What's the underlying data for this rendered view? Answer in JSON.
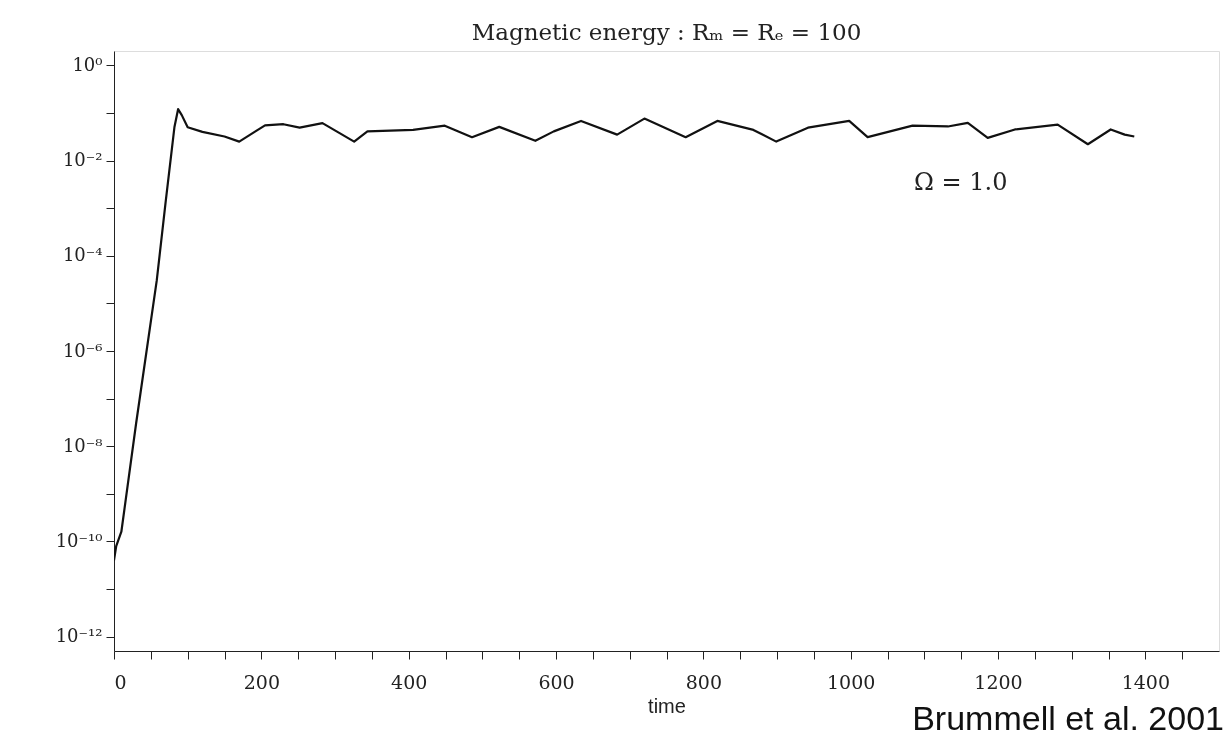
{
  "chart_data": {
    "type": "line",
    "title": "Magnetic energy : Rₘ = Rₑ = 100",
    "xlabel": "time",
    "annotations": [
      "Brummell et al. 2001"
    ],
    "log": "y",
    "grid": false,
    "legend": false,
    "marker": "none",
    "line_style": "solid",
    "xlim": [
      0,
      1500
    ],
    "ylim": [
      5e-13,
      2
    ],
    "xticks": [
      0,
      {
        "value": 50,
        "label": null
      },
      {
        "value": 100,
        "label": null
      },
      {
        "value": 150,
        "label": null
      },
      200,
      {
        "value": 250,
        "label": null
      },
      {
        "value": 300,
        "label": null
      },
      {
        "value": 350,
        "label": null
      },
      400,
      {
        "value": 450,
        "label": null
      },
      {
        "value": 500,
        "label": null
      },
      {
        "value": 550,
        "label": null
      },
      600,
      {
        "value": 650,
        "label": null
      },
      {
        "value": 700,
        "label": null
      },
      {
        "value": 750,
        "label": null
      },
      800,
      {
        "value": 850,
        "label": null
      },
      {
        "value": 900,
        "label": null
      },
      {
        "value": 950,
        "label": null
      },
      1000,
      {
        "value": 1050,
        "label": null
      },
      {
        "value": 1100,
        "label": null
      },
      {
        "value": 1150,
        "label": null
      },
      1200,
      {
        "value": 1250,
        "label": null
      },
      {
        "value": 1300,
        "label": null
      },
      {
        "value": 1350,
        "label": null
      },
      1400,
      {
        "value": 1450,
        "label": null
      }
    ],
    "yticks": [
      {
        "value": 1e-12,
        "label": "10⁻¹²"
      },
      {
        "value": 1e-11,
        "label": null
      },
      {
        "value": 1e-10,
        "label": "10⁻¹⁰"
      },
      {
        "value": 1e-09,
        "label": null
      },
      {
        "value": 1e-08,
        "label": "10⁻⁸"
      },
      {
        "value": 1e-07,
        "label": null
      },
      {
        "value": 1e-06,
        "label": "10⁻⁶"
      },
      {
        "value": 1e-05,
        "label": null
      },
      {
        "value": 0.0001,
        "label": "10⁻⁴"
      },
      {
        "value": 0.001,
        "label": null
      },
      {
        "value": 0.01,
        "label": "10⁻²"
      },
      {
        "value": 0.1,
        "label": null
      },
      {
        "value": 1,
        "label": "10⁰"
      }
    ],
    "series": [
      {
        "name": "Ω = 1.0",
        "color": "#111111",
        "x": [
          0,
          3,
          10,
          30,
          58,
          70,
          82,
          87,
          92,
          100,
          120,
          150,
          170,
          185,
          205,
          230,
          252,
          283,
          326,
          344,
          406,
          449,
          486,
          523,
          572,
          597,
          634,
          683,
          720,
          776,
          819,
          868,
          899,
          942,
          998,
          1023,
          1084,
          1132,
          1159,
          1186,
          1223,
          1281,
          1322,
          1353,
          1372,
          1385
        ],
        "values": [
          4e-11,
          8e-11,
          1.6e-10,
          3e-08,
          3e-05,
          0.0013,
          0.05,
          0.12,
          0.09,
          0.05,
          0.04,
          0.032,
          0.025,
          0.035,
          0.055,
          0.058,
          0.049,
          0.061,
          0.025,
          0.041,
          0.044,
          0.054,
          0.031,
          0.051,
          0.026,
          0.041,
          0.068,
          0.035,
          0.076,
          0.031,
          0.068,
          0.044,
          0.025,
          0.049,
          0.068,
          0.031,
          0.054,
          0.052,
          0.062,
          0.03,
          0.045,
          0.057,
          0.022,
          0.045,
          0.035,
          0.032
        ]
      }
    ]
  }
}
